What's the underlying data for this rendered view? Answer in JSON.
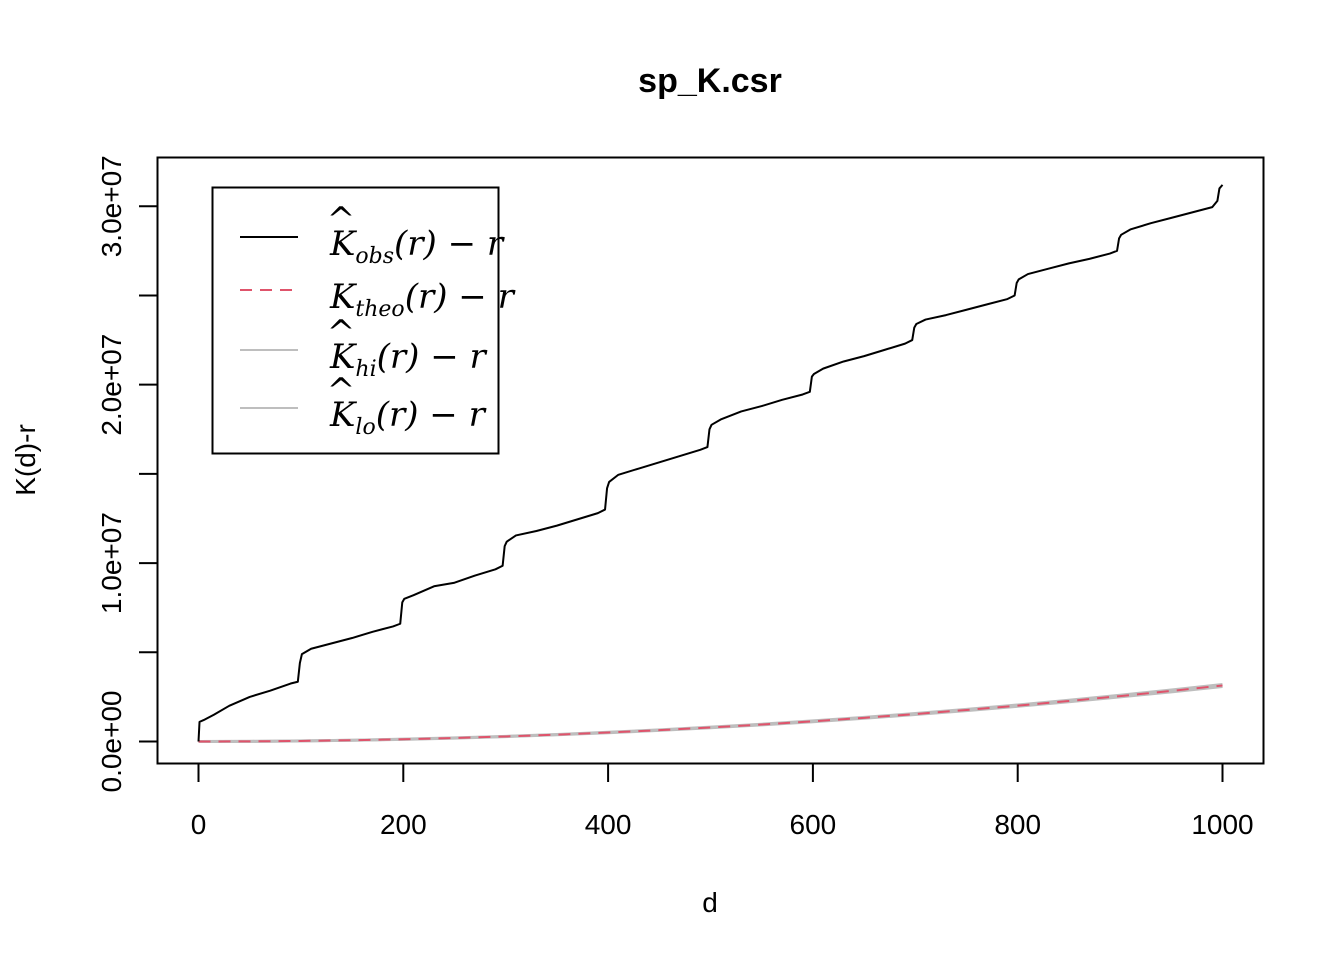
{
  "chart_data": {
    "type": "line",
    "title": "sp_K.csr",
    "xlabel": "d",
    "ylabel": "K(d)-r",
    "xlim": [
      0,
      1000
    ],
    "ylim": [
      0,
      31500000
    ],
    "x_ticks": [
      0,
      200,
      400,
      600,
      800,
      1000
    ],
    "x_tick_labels": [
      "0",
      "200",
      "400",
      "600",
      "800",
      "1000"
    ],
    "y_ticks": [
      0,
      5000000,
      10000000,
      15000000,
      20000000,
      25000000,
      30000000
    ],
    "y_tick_labels": [
      "0.0e+00",
      "",
      "1.0e+07",
      "",
      "2.0e+07",
      "",
      "3.0e+07"
    ],
    "grid": false,
    "legend_position": "top-left",
    "series": [
      {
        "name": "K̂obs(r) − r",
        "legend": {
          "base": "K",
          "hat": true,
          "sub": "obs",
          "tail": "(r) − r"
        },
        "color": "#000000",
        "dash": "solid",
        "x": [
          0,
          1,
          5,
          15,
          30,
          50,
          70,
          90,
          97,
          99,
          101,
          110,
          130,
          150,
          170,
          190,
          197,
          199,
          201,
          210,
          230,
          250,
          270,
          290,
          297,
          299,
          301,
          310,
          330,
          350,
          370,
          390,
          397,
          399,
          401,
          410,
          430,
          450,
          470,
          490,
          497,
          499,
          501,
          510,
          530,
          550,
          570,
          590,
          597,
          599,
          601,
          610,
          630,
          650,
          670,
          690,
          697,
          699,
          701,
          710,
          730,
          750,
          770,
          790,
          797,
          799,
          801,
          810,
          830,
          850,
          870,
          890,
          897,
          899,
          901,
          910,
          930,
          950,
          970,
          990,
          995,
          997,
          1000
        ],
        "y": [
          0,
          1100000,
          1200000,
          1500000,
          2000000,
          2500000,
          2850000,
          3250000,
          3350000,
          4400000,
          4900000,
          5200000,
          5500000,
          5800000,
          6150000,
          6450000,
          6600000,
          7800000,
          8000000,
          8200000,
          8700000,
          8900000,
          9300000,
          9650000,
          9850000,
          10950000,
          11200000,
          11550000,
          11800000,
          12100000,
          12450000,
          12800000,
          13000000,
          14200000,
          14550000,
          14950000,
          15300000,
          15650000,
          16000000,
          16350000,
          16500000,
          17500000,
          17750000,
          18050000,
          18500000,
          18800000,
          19150000,
          19450000,
          19600000,
          20450000,
          20600000,
          20900000,
          21300000,
          21600000,
          21950000,
          22300000,
          22500000,
          23200000,
          23400000,
          23650000,
          23900000,
          24200000,
          24500000,
          24800000,
          25000000,
          25700000,
          25900000,
          26200000,
          26500000,
          26800000,
          27050000,
          27350000,
          27500000,
          28200000,
          28400000,
          28700000,
          29050000,
          29350000,
          29650000,
          29950000,
          30300000,
          31000000,
          31200000
        ]
      },
      {
        "name": "Ktheo(r) − r",
        "legend": {
          "base": "K",
          "hat": false,
          "sub": "theo",
          "tail": "(r) − r"
        },
        "color": "#DF536B",
        "dash": "dashed",
        "x": [
          0,
          50,
          100,
          150,
          200,
          250,
          300,
          350,
          400,
          450,
          500,
          550,
          600,
          650,
          700,
          750,
          800,
          850,
          900,
          950,
          1000
        ],
        "y": [
          0,
          7900,
          31400,
          70700,
          125700,
          196300,
          282700,
          384800,
          502700,
          636200,
          785400,
          950300,
          1131000,
          1327300,
          1539400,
          1767100,
          2010600,
          2269800,
          2544700,
          2835300,
          3141600
        ]
      },
      {
        "name": "K̂hi(r) − r",
        "legend": {
          "base": "K",
          "hat": true,
          "sub": "hi",
          "tail": "(r) − r"
        },
        "color": "#BEBEBE",
        "dash": "solid",
        "x": [
          0,
          50,
          100,
          150,
          200,
          250,
          300,
          350,
          400,
          450,
          500,
          550,
          600,
          650,
          700,
          750,
          800,
          850,
          900,
          950,
          1000
        ],
        "y": [
          0,
          8500,
          33000,
          73500,
          130000,
          202500,
          290500,
          394500,
          515000,
          651000,
          803000,
          970500,
          1154000,
          1353500,
          1569000,
          1800500,
          2048000,
          2311500,
          2591000,
          2886500,
          3198000
        ]
      },
      {
        "name": "K̂lo(r) − r",
        "legend": {
          "base": "K",
          "hat": true,
          "sub": "lo",
          "tail": "(r) − r"
        },
        "color": "#BEBEBE",
        "dash": "solid",
        "x": [
          0,
          50,
          100,
          150,
          200,
          250,
          300,
          350,
          400,
          450,
          500,
          550,
          600,
          650,
          700,
          750,
          800,
          850,
          900,
          950,
          1000
        ],
        "y": [
          0,
          7300,
          29800,
          67900,
          121400,
          190100,
          274900,
          375100,
          490400,
          621400,
          767800,
          930100,
          1108000,
          1301100,
          1509800,
          1733700,
          1973200,
          2228100,
          2498400,
          2784100,
          3085200
        ]
      }
    ]
  }
}
